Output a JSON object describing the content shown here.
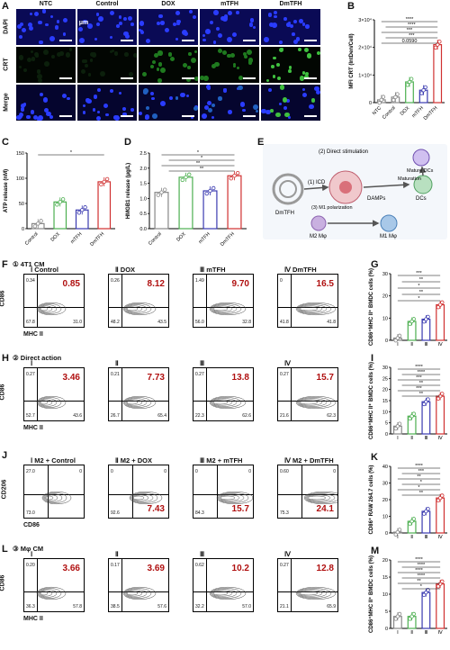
{
  "panels": {
    "A": "A",
    "B": "B",
    "C": "C",
    "D": "D",
    "E": "E",
    "F": "F",
    "G": "G",
    "H": "H",
    "I": "I",
    "J": "J",
    "K": "K",
    "L": "L",
    "M": "M"
  },
  "panelA": {
    "columns": [
      "NTC",
      "Control",
      "DOX",
      "mTFH",
      "DmTFH"
    ],
    "rows": [
      "DAPI",
      "CRT",
      "Merge"
    ],
    "scale_label": "50 μm"
  },
  "sections": {
    "F": "① 4T1 CM",
    "H": "② Direct action",
    "L": "③ Mφ CM"
  },
  "flowF": {
    "titles": [
      "Ⅰ Control",
      "Ⅱ DOX",
      "Ⅲ mTFH",
      "Ⅳ DmTFH"
    ],
    "big": [
      "0.85",
      "8.12",
      "9.70",
      "16.5"
    ],
    "ul": [
      "0.34",
      "0.26",
      "1.49",
      "0"
    ],
    "ll": [
      "67.8",
      "48.2",
      "56.0",
      "41.8"
    ],
    "lr": [
      "31.0",
      "43.5",
      "32.8",
      "41.8"
    ],
    "ylabel": "CD86",
    "xlabel": "MHC II"
  },
  "flowH": {
    "titles": [
      "Ⅰ",
      "Ⅱ",
      "Ⅲ",
      "Ⅳ"
    ],
    "big": [
      "3.46",
      "7.73",
      "13.8",
      "15.7"
    ],
    "ul": [
      "0.27",
      "0.21",
      "0.27",
      "0.27"
    ],
    "ll": [
      "52.7",
      "26.7",
      "22.3",
      "21.6"
    ],
    "lr": [
      "43.6",
      "65.4",
      "62.6",
      "62.3"
    ],
    "ylabel": "CD86",
    "xlabel": "MHC II"
  },
  "flowJ": {
    "titles": [
      "Ⅰ M2 + Control",
      "Ⅱ M2 + DOX",
      "Ⅲ M2 + mTFH",
      "Ⅳ M2 + DmTFH"
    ],
    "big": [
      "",
      "7.43",
      "15.7",
      "24.1"
    ],
    "ul": [
      "27.0",
      "0",
      "0",
      "0.60"
    ],
    "ur": [
      "0",
      "0",
      "0",
      "0"
    ],
    "ll": [
      "73.0",
      "92.6",
      "84.3",
      "75.3"
    ],
    "ylabel": "CD206",
    "xlabel": "CD86"
  },
  "flowL": {
    "titles": [
      "Ⅰ",
      "Ⅱ",
      "Ⅲ",
      "Ⅳ"
    ],
    "big": [
      "3.66",
      "3.69",
      "10.2",
      "12.8"
    ],
    "ul": [
      "0.20",
      "0.17",
      "0.62",
      "0.27"
    ],
    "ll": [
      "36.3",
      "38.5",
      "32.2",
      "21.1"
    ],
    "lr": [
      "57.8",
      "57.6",
      "57.0",
      "65.9"
    ],
    "ylabel": "CD86",
    "xlabel": "MHC II"
  },
  "schematic": {
    "labels": [
      "(2) Direct stimulation",
      "(1) ICD",
      "DAMPs",
      "DmTFH",
      "(3) M1 polarization",
      "M2 Mφ",
      "M1 Mφ",
      "Mature DCs",
      "Maturation",
      "DCs"
    ]
  },
  "chart_data": [
    {
      "panel": "B",
      "type": "bar",
      "categories": [
        "NTC",
        "Control",
        "DOX",
        "mTFH",
        "DmTFH"
      ],
      "values": [
        1000,
        2000,
        7500,
        4500,
        21000
      ],
      "ylabel": "MFI CRT (IntDen/Cell)",
      "ylim": [
        0,
        30000
      ],
      "yticks": [
        "0",
        "1×10⁴",
        "2×10⁴",
        "3×10⁴"
      ],
      "annotations": [
        "****",
        "****",
        "***",
        "***",
        "0.0590"
      ],
      "colors": [
        "#888888",
        "#888888",
        "#4caf50",
        "#3a3ab0",
        "#d03030"
      ]
    },
    {
      "panel": "C",
      "type": "bar",
      "categories": [
        "Control",
        "DOX",
        "mTFH",
        "DmTFH"
      ],
      "values": [
        10,
        53,
        37,
        93
      ],
      "ylabel": "ATP release (nM)",
      "ylim": [
        0,
        150
      ],
      "yticks": [
        "0",
        "50",
        "100",
        "150"
      ],
      "annotations": [
        "*"
      ],
      "colors": [
        "#888888",
        "#4caf50",
        "#3a3ab0",
        "#d03030"
      ]
    },
    {
      "panel": "D",
      "type": "bar",
      "categories": [
        "Control",
        "DOX",
        "mTFH",
        "DmTFH"
      ],
      "values": [
        1.2,
        1.7,
        1.25,
        1.75
      ],
      "ylabel": "HMGB1 release (μg/L)",
      "ylim": [
        0,
        2.5
      ],
      "yticks": [
        "0.0",
        "0.5",
        "1.0",
        "1.5",
        "2.0",
        "2.5"
      ],
      "annotations": [
        "*",
        "*",
        "**",
        "**"
      ],
      "colors": [
        "#888888",
        "#4caf50",
        "#3a3ab0",
        "#d03030"
      ]
    },
    {
      "panel": "G",
      "type": "bar",
      "categories": [
        "Ⅰ",
        "Ⅱ",
        "Ⅲ",
        "Ⅳ"
      ],
      "values": [
        1,
        8.5,
        9.5,
        16
      ],
      "ylabel": "CD86⁺MHC II⁺ BMDC cells (%)",
      "ylim": [
        0,
        30
      ],
      "yticks": [
        "0",
        "10",
        "20",
        "30"
      ],
      "annotations": [
        "***",
        "**",
        "*",
        "**",
        "*"
      ],
      "colors": [
        "#888888",
        "#4caf50",
        "#3a3ab0",
        "#d03030"
      ]
    },
    {
      "panel": "I",
      "type": "bar",
      "categories": [
        "Ⅰ",
        "Ⅱ",
        "Ⅲ",
        "Ⅳ"
      ],
      "values": [
        3.5,
        8,
        14.5,
        17
      ],
      "ylabel": "CD86⁺MHC II⁺ BMDC cells (%)",
      "ylim": [
        0,
        30
      ],
      "yticks": [
        "0",
        "5",
        "10",
        "15",
        "20",
        "25",
        "30"
      ],
      "annotations": [
        "****",
        "****",
        "***",
        "**",
        "***",
        "**"
      ],
      "colors": [
        "#888888",
        "#4caf50",
        "#3a3ab0",
        "#d03030"
      ]
    },
    {
      "panel": "K",
      "type": "bar",
      "categories": [
        "Ⅰ",
        "Ⅱ",
        "Ⅲ",
        "Ⅳ"
      ],
      "values": [
        0.5,
        7,
        13,
        21
      ],
      "ylabel": "CD86⁺ RAW 264.7 cells (%)",
      "ylim": [
        0,
        40
      ],
      "yticks": [
        "0",
        "10",
        "20",
        "30",
        "40"
      ],
      "annotations": [
        "****",
        "***",
        "**",
        "*",
        "*",
        "**"
      ],
      "colors": [
        "#888888",
        "#4caf50",
        "#3a3ab0",
        "#d03030"
      ]
    },
    {
      "panel": "M",
      "type": "bar",
      "categories": [
        "Ⅰ",
        "Ⅱ",
        "Ⅲ",
        "Ⅳ"
      ],
      "values": [
        3.5,
        3.5,
        10.5,
        13
      ],
      "ylabel": "CD86⁺MHC II⁺ BMDC cells (%)",
      "ylim": [
        0,
        20
      ],
      "yticks": [
        "0",
        "5",
        "10",
        "15",
        "20"
      ],
      "annotations": [
        "****",
        "****",
        "****",
        "****",
        "**",
        "*"
      ],
      "colors": [
        "#888888",
        "#4caf50",
        "#3a3ab0",
        "#d03030"
      ]
    }
  ]
}
